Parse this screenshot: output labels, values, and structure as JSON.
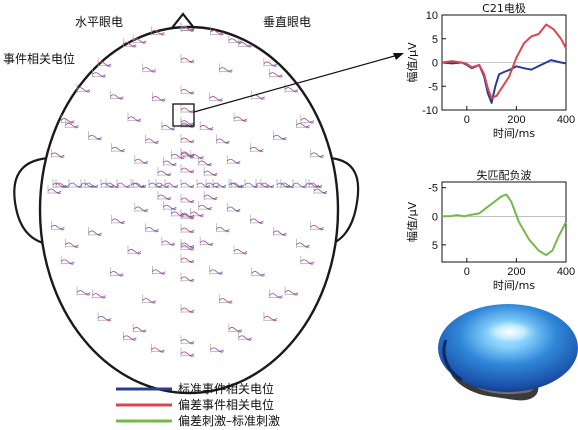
{
  "labels": {
    "horizontal_eog": "水平眼电",
    "vertical_eog": "垂直眼电",
    "erp": "事件相关电位"
  },
  "legend": [
    {
      "label": "标准事件相关电位",
      "color": "#2b3c93"
    },
    {
      "label": "偏差事件相关电位",
      "color": "#d9474f"
    },
    {
      "label": "偏差刺激–标准刺激",
      "color": "#74b94a"
    }
  ],
  "chart_data": [
    {
      "type": "line",
      "title": "C21电极",
      "xlabel": "时间/ms",
      "ylabel": "幅值/μV",
      "xlim": [
        -100,
        400
      ],
      "ylim": [
        -10,
        10
      ],
      "xticks": [
        0,
        200,
        400
      ],
      "yticks": [
        10,
        5,
        0,
        -5,
        -10
      ],
      "series": [
        {
          "color": "#2b3c93",
          "x": [
            -100,
            -60,
            -20,
            0,
            20,
            50,
            70,
            85,
            100,
            115,
            130,
            150,
            175,
            200,
            230,
            260,
            300,
            340,
            380,
            400
          ],
          "y": [
            0,
            -0.2,
            0,
            -0.5,
            -1.2,
            -0.5,
            -3,
            -6.5,
            -8.5,
            -5,
            -2.5,
            -2,
            -1.5,
            -0.8,
            -1.2,
            -1.5,
            -0.5,
            0.5,
            0,
            -0.2
          ]
        },
        {
          "color": "#d9474f",
          "x": [
            -100,
            -60,
            -20,
            0,
            20,
            50,
            70,
            85,
            100,
            120,
            145,
            170,
            200,
            230,
            260,
            290,
            320,
            350,
            380,
            400
          ],
          "y": [
            0,
            0.3,
            0,
            -0.3,
            -1,
            -0.5,
            -2.5,
            -5.5,
            -7.5,
            -7,
            -5,
            -3,
            1,
            4,
            5.5,
            6,
            8,
            7,
            5,
            3
          ]
        }
      ]
    },
    {
      "type": "line",
      "title": "失匹配负波",
      "xlabel": "时间/ms",
      "ylabel": "幅值/μV",
      "xlim": [
        -100,
        400
      ],
      "ylim": [
        8,
        -6
      ],
      "xticks": [
        0,
        200,
        400
      ],
      "yticks": [
        -5,
        0,
        5
      ],
      "series": [
        {
          "color": "#74b94a",
          "x": [
            -100,
            -70,
            -40,
            -10,
            20,
            50,
            80,
            110,
            140,
            160,
            180,
            210,
            250,
            290,
            320,
            345,
            370,
            400
          ],
          "y": [
            0,
            0,
            -0.2,
            0,
            -0.3,
            -0.5,
            -1.5,
            -2.5,
            -3.5,
            -3.8,
            -2.5,
            1,
            4,
            6,
            6.8,
            6,
            3.5,
            1
          ]
        }
      ]
    }
  ]
}
